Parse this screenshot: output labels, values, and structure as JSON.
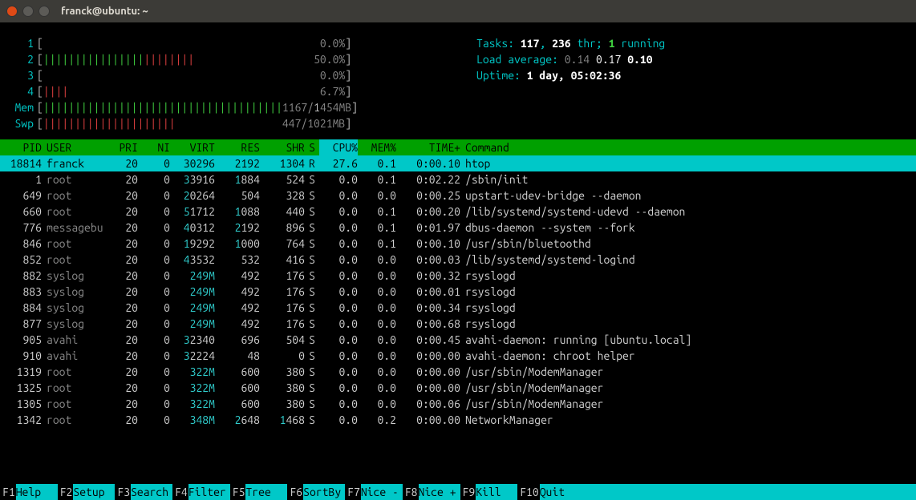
{
  "window": {
    "title": "franck@ubuntu: ~"
  },
  "colors": {
    "bg": "#000000",
    "titlebar": "#3c3b37",
    "close": "#df4a16",
    "cyan": "#00c8c8",
    "green": "#40d040",
    "red": "#e04040",
    "header_bg": "#00a000",
    "selected_bg": "#00c8c8",
    "white": "#ffffff",
    "gray": "#888888"
  },
  "cpu_meters": [
    {
      "label": "1",
      "ticks": [],
      "value": "0.0%"
    },
    {
      "label": "2",
      "ticks": [
        "green",
        "green",
        "green",
        "green",
        "green",
        "green",
        "green",
        "green",
        "green",
        "green",
        "green",
        "green",
        "green",
        "green",
        "green",
        "green",
        "red",
        "red",
        "red",
        "red",
        "red",
        "red",
        "red",
        "red"
      ],
      "value": "50.0%"
    },
    {
      "label": "3",
      "ticks": [],
      "value": "0.0%"
    },
    {
      "label": "4",
      "ticks": [
        "red",
        "red",
        "red",
        "red"
      ],
      "value": "6.7%"
    }
  ],
  "mem_meter": {
    "label": "Mem",
    "ticks": [
      "green",
      "green",
      "green",
      "green",
      "green",
      "green",
      "green",
      "green",
      "green",
      "green",
      "green",
      "green",
      "green",
      "green",
      "green",
      "green",
      "green",
      "green",
      "green",
      "green",
      "green",
      "green",
      "green",
      "green",
      "green",
      "green",
      "green",
      "green",
      "green",
      "green",
      "green",
      "green",
      "green",
      "green",
      "green",
      "green",
      "green",
      "green"
    ],
    "value_used": "1167",
    "value_sep": "/",
    "value_total_hi": "1",
    "value_total_rest": "454MB"
  },
  "swp_meter": {
    "label": "Swp",
    "ticks": [
      "red",
      "red",
      "red",
      "red",
      "red",
      "red",
      "red",
      "red",
      "red",
      "red",
      "red",
      "red",
      "red",
      "red",
      "red",
      "red",
      "red",
      "red",
      "red",
      "red",
      "red"
    ],
    "value": "447/1021MB"
  },
  "stats": {
    "tasks_label": "Tasks: ",
    "tasks_count": "117",
    "tasks_sep1": ", ",
    "thr_count": "236",
    "thr_label": " thr; ",
    "running_count": "1",
    "running_label": " running",
    "load_label": "Load average: ",
    "load_1": "0.14",
    "load_5": "0.17",
    "load_15": "0.10",
    "uptime_label": "Uptime: ",
    "uptime_value": "1 day, 05:02:36"
  },
  "columns": [
    "PID",
    "USER",
    "PRI",
    "NI",
    "VIRT",
    "RES",
    "SHR",
    "S",
    "CPU%",
    "MEM%",
    "TIME+",
    "Command"
  ],
  "sort_col": "CPU%",
  "processes": [
    {
      "pid": "18814",
      "user": "franck",
      "pri": "20",
      "ni": "0",
      "virt": "30296",
      "res": "2192",
      "shr": "1304",
      "s": "R",
      "cpu": "27.6",
      "mem": "0.1",
      "time": "0:00.10",
      "cmd": "htop",
      "sel": true,
      "user_self": true
    },
    {
      "pid": "1",
      "user": "root",
      "pri": "20",
      "ni": "0",
      "virt": "33916",
      "virt_hi": "3",
      "res": "1884",
      "res_hi": "1",
      "shr": "524",
      "s": "S",
      "cpu": "0.0",
      "mem": "0.1",
      "time": "0:02.22",
      "cmd": "/sbin/init"
    },
    {
      "pid": "649",
      "user": "root",
      "pri": "20",
      "ni": "0",
      "virt": "20264",
      "virt_hi": "2",
      "res": "504",
      "shr": "328",
      "s": "S",
      "cpu": "0.0",
      "mem": "0.0",
      "time": "0:00.25",
      "cmd": "upstart-udev-bridge --daemon"
    },
    {
      "pid": "660",
      "user": "root",
      "pri": "20",
      "ni": "0",
      "virt": "51712",
      "virt_hi": "5",
      "res": "1088",
      "res_hi": "1",
      "shr": "440",
      "s": "S",
      "cpu": "0.0",
      "mem": "0.1",
      "time": "0:00.20",
      "cmd": "/lib/systemd/systemd-udevd --daemon"
    },
    {
      "pid": "776",
      "user": "messagebu",
      "pri": "20",
      "ni": "0",
      "virt": "40312",
      "virt_hi": "4",
      "res": "2192",
      "res_hi": "2",
      "shr": "896",
      "s": "S",
      "cpu": "0.0",
      "mem": "0.1",
      "time": "0:01.97",
      "cmd": "dbus-daemon --system --fork"
    },
    {
      "pid": "846",
      "user": "root",
      "pri": "20",
      "ni": "0",
      "virt": "19292",
      "virt_hi": "1",
      "res": "1000",
      "res_hi": "1",
      "shr": "764",
      "s": "S",
      "cpu": "0.0",
      "mem": "0.1",
      "time": "0:00.10",
      "cmd": "/usr/sbin/bluetoothd"
    },
    {
      "pid": "852",
      "user": "root",
      "pri": "20",
      "ni": "0",
      "virt": "43532",
      "virt_hi": "4",
      "res": "532",
      "shr": "416",
      "s": "S",
      "cpu": "0.0",
      "mem": "0.0",
      "time": "0:00.03",
      "cmd": "/lib/systemd/systemd-logind"
    },
    {
      "pid": "882",
      "user": "syslog",
      "pri": "20",
      "ni": "0",
      "virt": "249M",
      "virt_all_hi": true,
      "res": "492",
      "shr": "176",
      "s": "S",
      "cpu": "0.0",
      "mem": "0.0",
      "time": "0:00.32",
      "cmd": "rsyslogd"
    },
    {
      "pid": "883",
      "user": "syslog",
      "pri": "20",
      "ni": "0",
      "virt": "249M",
      "virt_all_hi": true,
      "res": "492",
      "shr": "176",
      "s": "S",
      "cpu": "0.0",
      "mem": "0.0",
      "time": "0:00.01",
      "cmd": "rsyslogd"
    },
    {
      "pid": "884",
      "user": "syslog",
      "pri": "20",
      "ni": "0",
      "virt": "249M",
      "virt_all_hi": true,
      "res": "492",
      "shr": "176",
      "s": "S",
      "cpu": "0.0",
      "mem": "0.0",
      "time": "0:00.34",
      "cmd": "rsyslogd"
    },
    {
      "pid": "877",
      "user": "syslog",
      "pri": "20",
      "ni": "0",
      "virt": "249M",
      "virt_all_hi": true,
      "res": "492",
      "shr": "176",
      "s": "S",
      "cpu": "0.0",
      "mem": "0.0",
      "time": "0:00.68",
      "cmd": "rsyslogd"
    },
    {
      "pid": "905",
      "user": "avahi",
      "pri": "20",
      "ni": "0",
      "virt": "32340",
      "virt_hi": "3",
      "res": "696",
      "shr": "504",
      "s": "S",
      "cpu": "0.0",
      "mem": "0.0",
      "time": "0:00.45",
      "cmd": "avahi-daemon: running [ubuntu.local]"
    },
    {
      "pid": "910",
      "user": "avahi",
      "pri": "20",
      "ni": "0",
      "virt": "32224",
      "virt_hi": "3",
      "res": "48",
      "shr": "0",
      "s": "S",
      "cpu": "0.0",
      "mem": "0.0",
      "time": "0:00.00",
      "cmd": "avahi-daemon: chroot helper"
    },
    {
      "pid": "1319",
      "user": "root",
      "pri": "20",
      "ni": "0",
      "virt": "322M",
      "virt_all_hi": true,
      "res": "600",
      "shr": "380",
      "s": "S",
      "cpu": "0.0",
      "mem": "0.0",
      "time": "0:00.00",
      "cmd": "/usr/sbin/ModemManager"
    },
    {
      "pid": "1325",
      "user": "root",
      "pri": "20",
      "ni": "0",
      "virt": "322M",
      "virt_all_hi": true,
      "res": "600",
      "shr": "380",
      "s": "S",
      "cpu": "0.0",
      "mem": "0.0",
      "time": "0:00.00",
      "cmd": "/usr/sbin/ModemManager"
    },
    {
      "pid": "1305",
      "user": "root",
      "pri": "20",
      "ni": "0",
      "virt": "322M",
      "virt_all_hi": true,
      "res": "600",
      "shr": "380",
      "s": "S",
      "cpu": "0.0",
      "mem": "0.0",
      "time": "0:00.06",
      "cmd": "/usr/sbin/ModemManager"
    },
    {
      "pid": "1342",
      "user": "root",
      "pri": "20",
      "ni": "0",
      "virt": "348M",
      "virt_all_hi": true,
      "res": "2648",
      "res_hi": "2",
      "shr": "1468",
      "shr_hi": "1",
      "s": "S",
      "cpu": "0.0",
      "mem": "0.2",
      "time": "0:00.00",
      "cmd": "NetworkManager"
    }
  ],
  "footer": [
    {
      "key": "F1",
      "label": "Help"
    },
    {
      "key": "F2",
      "label": "Setup"
    },
    {
      "key": "F3",
      "label": "Search"
    },
    {
      "key": "F4",
      "label": "Filter"
    },
    {
      "key": "F5",
      "label": "Tree"
    },
    {
      "key": "F6",
      "label": "SortBy"
    },
    {
      "key": "F7",
      "label": "Nice -"
    },
    {
      "key": "F8",
      "label": "Nice +"
    },
    {
      "key": "F9",
      "label": "Kill"
    },
    {
      "key": "F10",
      "label": "Quit"
    }
  ]
}
